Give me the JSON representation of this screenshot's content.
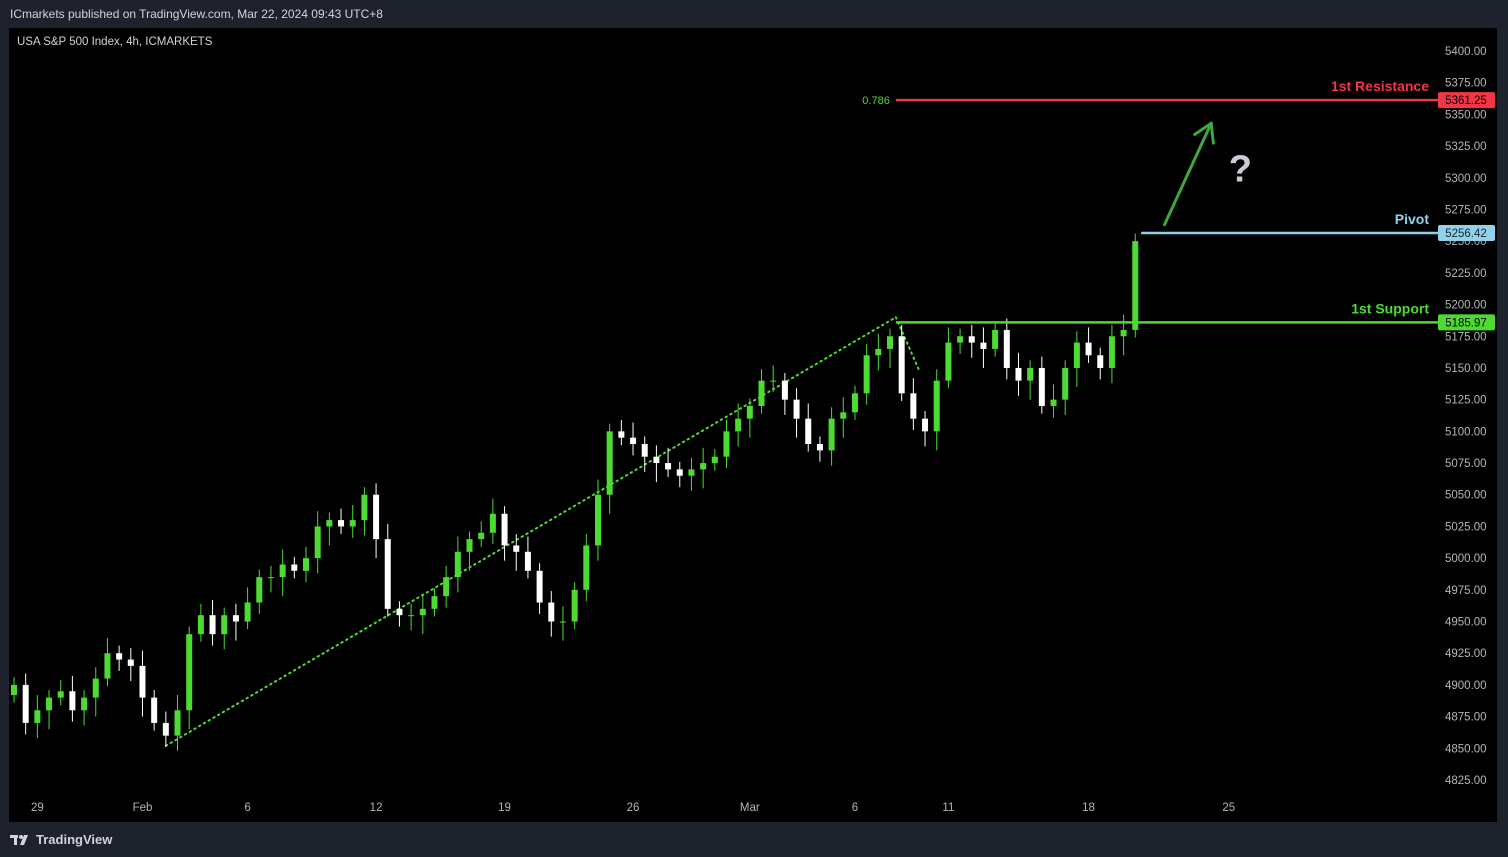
{
  "header": {
    "published": "ICmarkets published on TradingView.com, Mar 22, 2024 09:43 UTC+8"
  },
  "footer": {
    "logo_text": "TradingView"
  },
  "colors": {
    "resistance": "#f23645",
    "pivot": "#8fd3ea",
    "support": "#4ddb33",
    "bull_candle": "#4ddb33",
    "bear_candle": "#ffffff",
    "trend_dotted": "#4ddb33",
    "arrow": "#3fa83a",
    "question": "#c8cbd4"
  },
  "chart_data": {
    "type": "candlestick",
    "title": "USA S&P 500 Index, 4h, ICMARKETS",
    "y_axis": {
      "min": 4810,
      "max": 5412,
      "ticks": [
        4825,
        4850,
        4875,
        4900,
        4925,
        4950,
        4975,
        5000,
        5025,
        5050,
        5075,
        5100,
        5125,
        5150,
        5175,
        5200,
        5225,
        5250,
        5275,
        5300,
        5325,
        5350,
        5375,
        5400
      ]
    },
    "x_axis": {
      "labels": [
        "29",
        "Feb",
        "6",
        "12",
        "19",
        "26",
        "Mar",
        "6",
        "11",
        "18",
        "25"
      ],
      "label_index": [
        2,
        11,
        20,
        31,
        42,
        53,
        63,
        72,
        80,
        92,
        104
      ]
    },
    "levels": [
      {
        "name": "1st Resistance",
        "value": 5361.25,
        "label": "5361.25",
        "fib": "0.786",
        "start_index": 75.5
      },
      {
        "name": "Pivot",
        "value": 5256.42,
        "label": "5256.42",
        "start_index": 96.5
      },
      {
        "name": "1st Support",
        "value": 5185.97,
        "label": "5185.97",
        "start_index": 75.5
      }
    ],
    "trendlines": [
      {
        "from": [
          13,
          4852
        ],
        "to": [
          75.5,
          5190
        ]
      },
      {
        "from": [
          75.5,
          5190
        ],
        "to": [
          77.5,
          5148
        ]
      }
    ],
    "annotation_arrow": {
      "from": [
        98.5,
        5263
      ],
      "to": [
        102.5,
        5343
      ]
    },
    "annotation_question": {
      "text": "?",
      "at": [
        105,
        5297
      ]
    },
    "candle_index_start": 0,
    "candle_index_end": 97,
    "closes": [
      4900,
      4870,
      4880,
      4890,
      4895,
      4880,
      4890,
      4905,
      4925,
      4920,
      4915,
      4890,
      4870,
      4860,
      4880,
      4940,
      4955,
      4940,
      4955,
      4950,
      4965,
      4985,
      4985,
      4995,
      4990,
      5000,
      5025,
      5030,
      5025,
      5030,
      5050,
      5015,
      4960,
      4955,
      4955,
      4960,
      4970,
      4985,
      5005,
      5015,
      5020,
      5035,
      5010,
      5005,
      4990,
      4965,
      4950,
      4950,
      4975,
      5010,
      5050,
      5100,
      5095,
      5090,
      5080,
      5075,
      5070,
      5065,
      5070,
      5075,
      5080,
      5100,
      5110,
      5120,
      5140,
      5140,
      5125,
      5110,
      5090,
      5085,
      5110,
      5115,
      5130,
      5160,
      5165,
      5175,
      5130,
      5110,
      5100,
      5140,
      5170,
      5175,
      5170,
      5165,
      5180,
      5150,
      5140,
      5150,
      5120,
      5125,
      5150,
      5170,
      5160,
      5150,
      5175,
      5180,
      5250
    ]
  }
}
